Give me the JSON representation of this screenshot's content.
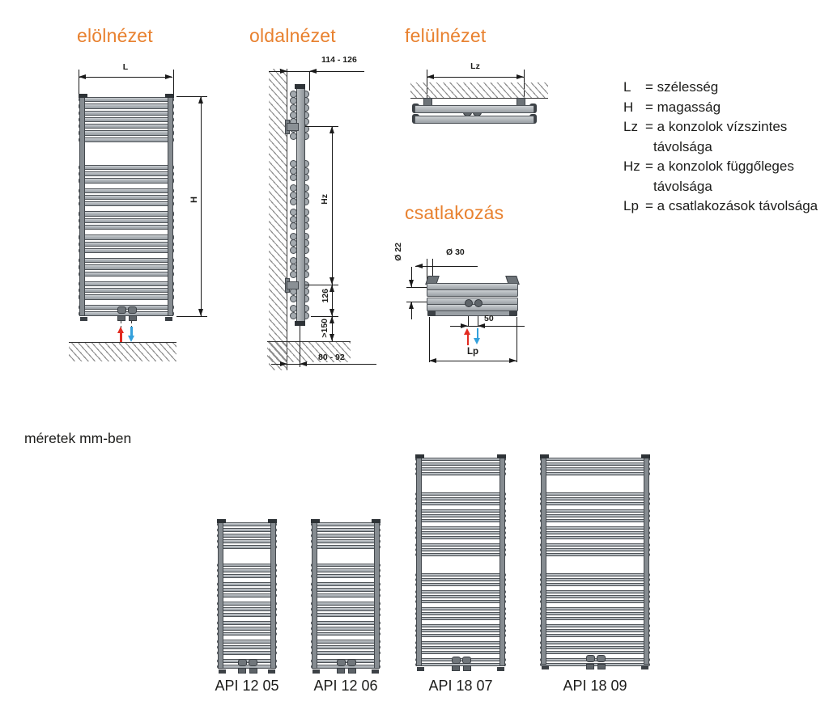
{
  "colors": {
    "accent": "#e8812f",
    "text": "#1d1d1b",
    "line": "#1a1a1a",
    "radiator_fill": "#a7adb2",
    "radiator_outline": "#4e5358",
    "flow_red": "#e22b21",
    "return_blue": "#33a0dc"
  },
  "views": {
    "front": {
      "title": "elölnézet",
      "dim_width": "L",
      "dim_height": "H"
    },
    "side": {
      "title": "oldalnézet",
      "dim_depth": "114 - 126",
      "dim_bracket": "Hz",
      "dim_bottom": "126",
      "dim_floor": ">150",
      "dim_wall": "80 - 92"
    },
    "top": {
      "title": "felülnézet",
      "dim_brackets": "Lz"
    },
    "connection": {
      "title": "csatlakozás",
      "dim_pipe": "Ø 22",
      "dim_conn": "Ø 30",
      "dim_spacing": "50",
      "dim_distance": "Lp"
    }
  },
  "legend": {
    "items": [
      {
        "symbol": "L",
        "definition": "= szélesség",
        "continuation": ""
      },
      {
        "symbol": "H",
        "definition": "= magasság",
        "continuation": ""
      },
      {
        "symbol": "Lz",
        "definition": "= a konzolok vízszintes",
        "continuation": "távolsága"
      },
      {
        "symbol": "Hz",
        "definition": "= a konzolok függőleges",
        "continuation": "távolsága"
      },
      {
        "symbol": "Lp",
        "definition": "= a csatlakozások távolsága",
        "continuation": ""
      }
    ]
  },
  "units_note": "méretek mm-ben",
  "front_pattern": [
    7,
    "T",
    3,
    3,
    3,
    3,
    3,
    3,
    2
  ],
  "models": [
    {
      "name": "API 12 05",
      "pattern": [
        5,
        "T",
        3,
        3,
        3,
        3,
        3,
        2
      ]
    },
    {
      "name": "API 12 06",
      "pattern": [
        5,
        "T",
        3,
        3,
        3,
        3,
        3,
        2
      ]
    },
    {
      "name": "API 18 07",
      "pattern": [
        4,
        "T",
        3,
        3,
        3,
        3,
        "T",
        3,
        3,
        3,
        3,
        3,
        2
      ]
    },
    {
      "name": "API 18 09",
      "pattern": [
        4,
        "T",
        3,
        3,
        3,
        3,
        "T",
        3,
        3,
        3,
        3,
        3,
        2
      ]
    }
  ]
}
